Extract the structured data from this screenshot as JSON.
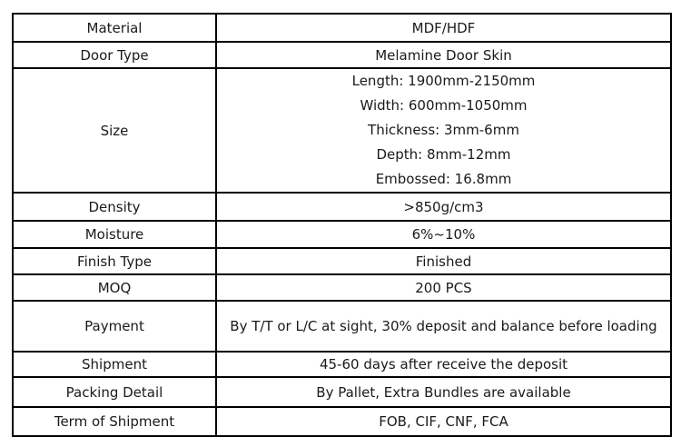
{
  "table": {
    "rows": [
      {
        "label": "Material",
        "value": "MDF/HDF",
        "align": "center"
      },
      {
        "label": "Door Type",
        "value": "Melamine Door Skin",
        "align": "center"
      },
      {
        "label": "Size",
        "value_lines": [
          "Length: 1900mm-2150mm",
          "Width: 600mm-1050mm",
          "Thickness: 3mm-6mm",
          "Depth: 8mm-12mm",
          "Embossed: 16.8mm"
        ],
        "align": "center"
      },
      {
        "label": "Density",
        "value": ">850g/cm3",
        "align": "center"
      },
      {
        "label": "Moisture",
        "value": "6%~10%",
        "align": "center"
      },
      {
        "label": "Finish Type",
        "value": "Finished",
        "align": "center"
      },
      {
        "label": "MOQ",
        "value": "200 PCS",
        "align": "center"
      },
      {
        "label": "Payment",
        "value": "By T/T or L/C at sight, 30% deposit and balance before loading",
        "align": "left"
      },
      {
        "label": "Shipment",
        "value": "45-60 days after receive the deposit",
        "align": "center"
      },
      {
        "label": "Packing Detail",
        "value": "By Pallet, Extra Bundles are available",
        "align": "center"
      },
      {
        "label": "Term of Shipment",
        "value": "FOB, CIF, CNF, FCA",
        "align": "center"
      }
    ]
  },
  "colors": {
    "border": "#000000",
    "text": "#1a1a1a",
    "background": "#ffffff"
  }
}
